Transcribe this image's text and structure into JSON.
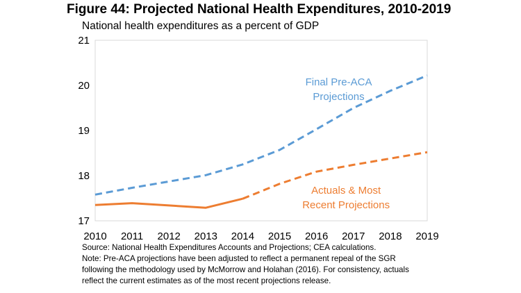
{
  "header": {
    "title": "Figure 44: Projected National Health Expenditures, 2010-2019",
    "subtitle": "National health expenditures as a percent of GDP"
  },
  "notes": {
    "source": "Source: National Health Expenditures Accounts and Projections; CEA calculations.",
    "note_line1": "Note: Pre-ACA projections have been adjusted to reflect a permanent repeal of the SGR",
    "note_line2": "following the methodology used by McMorrow and Holahan (2016). For consistency, actuals",
    "note_line3": "reflect the current estimates as of the most recent projections release."
  },
  "chart_data": {
    "type": "line",
    "title": "Figure 44: Projected National Health Expenditures, 2010-2019",
    "subtitle": "National health expenditures as a percent of GDP",
    "xlabel": "",
    "ylabel": "",
    "x": [
      2010,
      2011,
      2012,
      2013,
      2014,
      2015,
      2016,
      2017,
      2018,
      2019
    ],
    "ylim": [
      17,
      21
    ],
    "yticks": [
      17,
      18,
      19,
      20,
      21
    ],
    "grid": false,
    "legend": "none",
    "series": [
      {
        "name": "Final Pre-ACA Projections",
        "color": "#5b9bd5",
        "style": "dashed",
        "values": [
          17.58,
          17.73,
          17.87,
          18.01,
          18.25,
          18.57,
          19.03,
          19.5,
          19.88,
          20.22
        ]
      },
      {
        "name": "Actuals & Most Recent Projections",
        "color": "#ed7d31",
        "solid_through": 2014,
        "values": [
          17.35,
          17.39,
          17.34,
          17.29,
          17.49,
          17.82,
          18.09,
          18.24,
          18.38,
          18.52
        ]
      }
    ],
    "annotations": [
      {
        "lines": [
          "Final Pre-ACA",
          "Projections"
        ],
        "color": "#5b9bd5",
        "anchor_x": 2016.6,
        "anchor_y": 20.0
      },
      {
        "lines": [
          "Actuals & Most",
          "Recent Projections"
        ],
        "color": "#ed7d31",
        "anchor_x": 2016.8,
        "anchor_y": 17.6
      }
    ]
  }
}
